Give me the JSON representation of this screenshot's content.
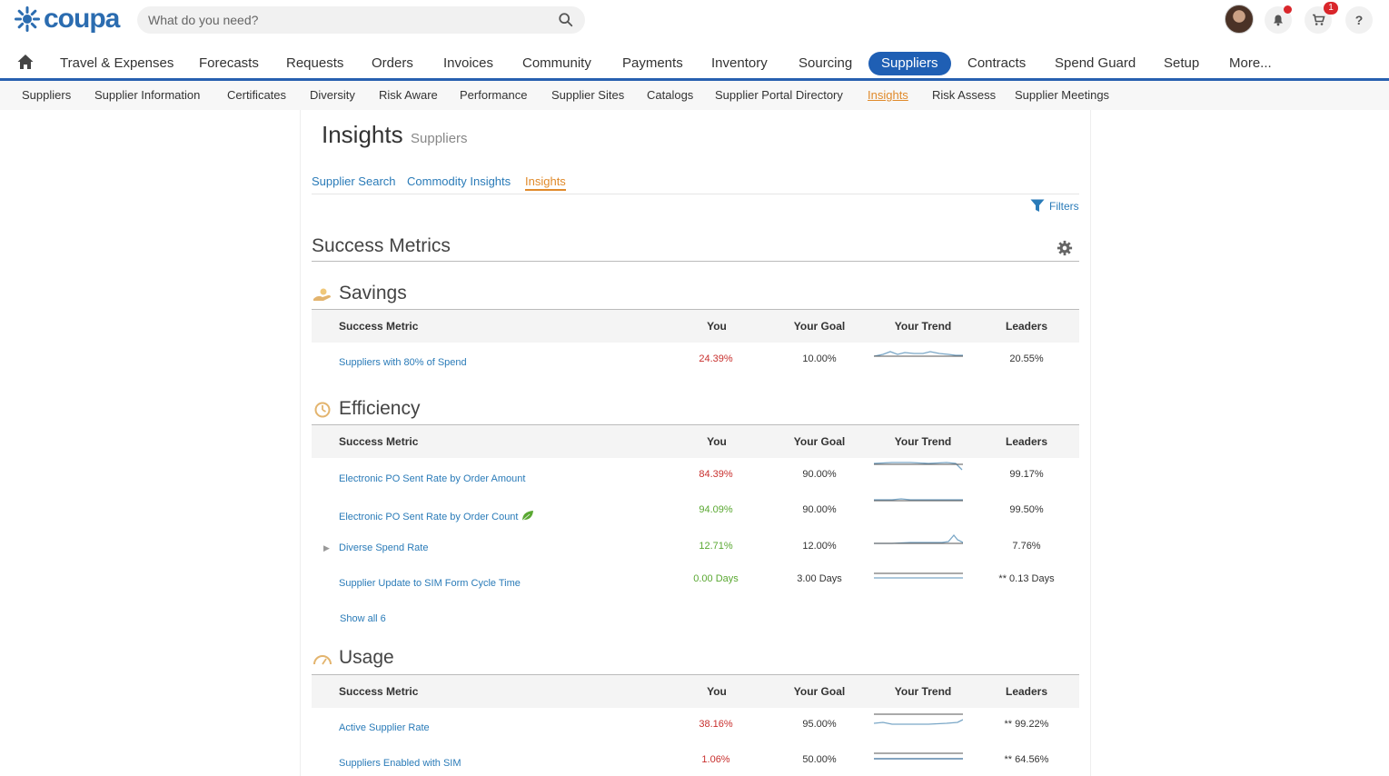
{
  "brand": {
    "name": "coupa",
    "color": "#2b6cb0"
  },
  "search": {
    "placeholder": "What do you need?"
  },
  "header": {
    "cart_count": "1"
  },
  "main_nav": [
    {
      "label": "Travel & Expenses"
    },
    {
      "label": "Forecasts"
    },
    {
      "label": "Requests"
    },
    {
      "label": "Orders"
    },
    {
      "label": "Invoices"
    },
    {
      "label": "Community"
    },
    {
      "label": "Payments"
    },
    {
      "label": "Inventory"
    },
    {
      "label": "Sourcing"
    },
    {
      "label": "Suppliers",
      "active": true
    },
    {
      "label": "Contracts"
    },
    {
      "label": "Spend Guard"
    },
    {
      "label": "Setup"
    },
    {
      "label": "More..."
    }
  ],
  "sub_nav": [
    {
      "label": "Suppliers"
    },
    {
      "label": "Supplier Information"
    },
    {
      "label": "Certificates"
    },
    {
      "label": "Diversity"
    },
    {
      "label": "Risk Aware"
    },
    {
      "label": "Performance"
    },
    {
      "label": "Supplier Sites"
    },
    {
      "label": "Catalogs"
    },
    {
      "label": "Supplier Portal Directory"
    },
    {
      "label": "Insights",
      "active": true
    },
    {
      "label": "Risk Assess"
    },
    {
      "label": "Supplier Meetings"
    }
  ],
  "page": {
    "title": "Insights",
    "subtitle": "Suppliers",
    "tabs": [
      {
        "label": "Supplier Search"
      },
      {
        "label": "Commodity Insights"
      },
      {
        "label": "Insights",
        "active": true
      }
    ],
    "filters_label": "Filters",
    "section_title": "Success Metrics"
  },
  "columns": {
    "metric": "Success Metric",
    "you": "You",
    "goal": "Your Goal",
    "trend": "Your Trend",
    "leaders": "Leaders"
  },
  "sections": {
    "savings": {
      "title": "Savings",
      "rows": [
        {
          "metric": "Suppliers with 80% of Spend",
          "you": "24.39%",
          "goal": "10.00%",
          "leaders": "20.55%"
        }
      ]
    },
    "efficiency": {
      "title": "Efficiency",
      "rows": [
        {
          "metric": "Electronic PO Sent Rate by Order Amount",
          "you": "84.39%",
          "goal": "90.00%",
          "leaders": "99.17%"
        },
        {
          "metric": "Electronic PO Sent Rate by Order Count",
          "you": "94.09%",
          "goal": "90.00%",
          "leaders": "99.50%"
        },
        {
          "metric": "Diverse Spend Rate",
          "you": "12.71%",
          "goal": "12.00%",
          "leaders": "7.76%"
        },
        {
          "metric": "Supplier Update to SIM Form Cycle Time",
          "you": "0.00 Days",
          "goal": "3.00 Days",
          "leaders": "** 0.13 Days"
        }
      ],
      "show_all": "Show all 6"
    },
    "usage": {
      "title": "Usage",
      "rows": [
        {
          "metric": "Active Supplier Rate",
          "you": "38.16%",
          "goal": "95.00%",
          "leaders": "** 99.22%"
        },
        {
          "metric": "Suppliers Enabled with SIM",
          "you": "1.06%",
          "goal": "50.00%",
          "leaders": "** 64.56%"
        }
      ]
    }
  },
  "colors": {
    "nav_active": "#1f5fb4",
    "link": "#2a7bb8",
    "below_goal": "#c8302e",
    "above_goal": "#5aa832",
    "active_tab": "#e08a2b"
  }
}
